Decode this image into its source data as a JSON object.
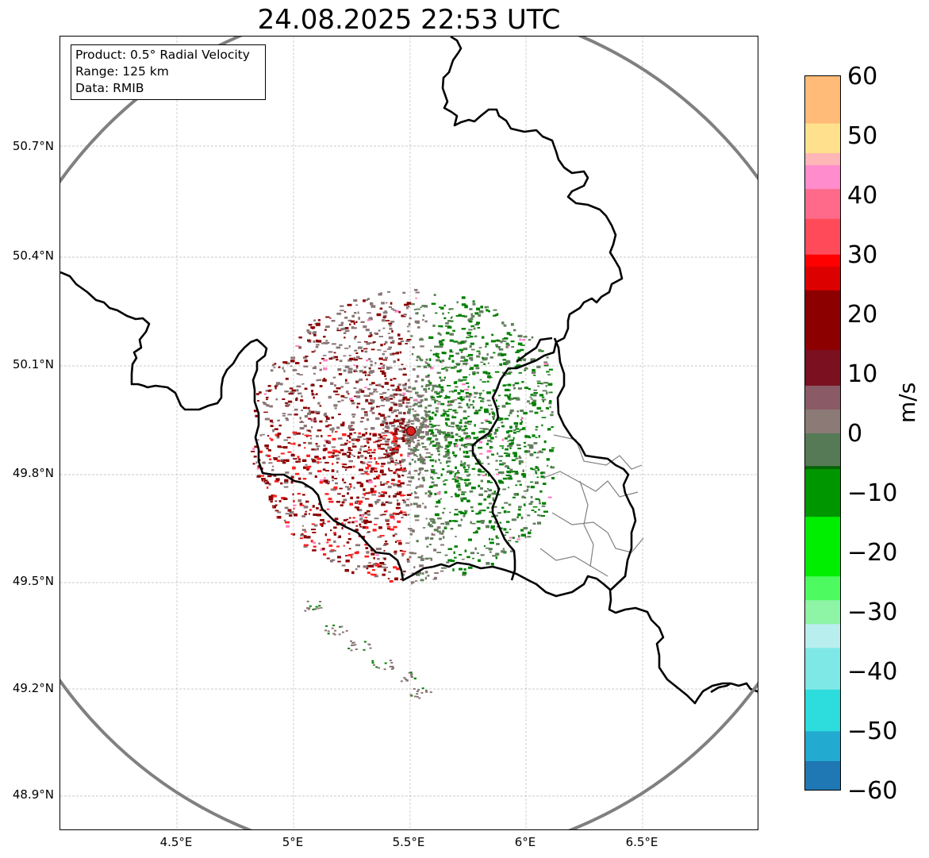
{
  "title": "24.08.2025 22:53 UTC",
  "info": {
    "product": "Product: 0.5° Radial Velocity",
    "range": "Range: 125 km",
    "source": "Data: RMIB"
  },
  "axes": {
    "lat_labels": [
      "50.7°N",
      "50.4°N",
      "50.1°N",
      "49.8°N",
      "49.5°N",
      "49.2°N",
      "48.9°N"
    ],
    "lon_labels": [
      "4.5°E",
      "5°E",
      "5.5°E",
      "6°E",
      "6.5°E"
    ]
  },
  "colorbar": {
    "unit": "m/s",
    "min": -60,
    "max": 60,
    "ticks": [
      "60",
      "50",
      "40",
      "30",
      "20",
      "10",
      "0",
      "−10",
      "−20",
      "−30",
      "−40",
      "−50",
      "−60"
    ],
    "stops": [
      {
        "v": -60,
        "color": "#1f77b4"
      },
      {
        "v": -55,
        "color": "#22aad0"
      },
      {
        "v": -50,
        "color": "#2ddcdc"
      },
      {
        "v": -43,
        "color": "#7ee8e6"
      },
      {
        "v": -36,
        "color": "#b9eeee"
      },
      {
        "v": -32,
        "color": "#8ef4a6"
      },
      {
        "v": -28,
        "color": "#4dfa60"
      },
      {
        "v": -24,
        "color": "#00ee00"
      },
      {
        "v": -14,
        "color": "#009600"
      },
      {
        "v": -6,
        "color": "#006400"
      },
      {
        "v": -5.5,
        "color": "#557a55"
      },
      {
        "v": 0,
        "color": "#8c7a76"
      },
      {
        "v": 4,
        "color": "#8a5a66"
      },
      {
        "v": 8,
        "color": "#7a1020"
      },
      {
        "v": 14,
        "color": "#8c0000"
      },
      {
        "v": 24,
        "color": "#dd0000"
      },
      {
        "v": 28,
        "color": "#ff0000"
      },
      {
        "v": 30,
        "color": "#ff4a5a"
      },
      {
        "v": 36,
        "color": "#ff6a8a"
      },
      {
        "v": 41,
        "color": "#ff8ccc"
      },
      {
        "v": 45,
        "color": "#ffb6b6"
      },
      {
        "v": 47,
        "color": "#ffe08c"
      },
      {
        "v": 52,
        "color": "#ffbb77"
      },
      {
        "v": 60,
        "color": "#ff9955"
      }
    ]
  },
  "map": {
    "range_ring_color": "#808080",
    "radar_site_color": "#e02020",
    "border_color": "#000000",
    "region_line_color": "#808080"
  },
  "echo_colors": {
    "inbound_strong": "#008000",
    "inbound_light": "#5f7f5a",
    "neutral": "#8a7676",
    "outbound_dark": "#8b0000",
    "outbound_bright": "#ff2020",
    "pink": "#ff80c0"
  }
}
